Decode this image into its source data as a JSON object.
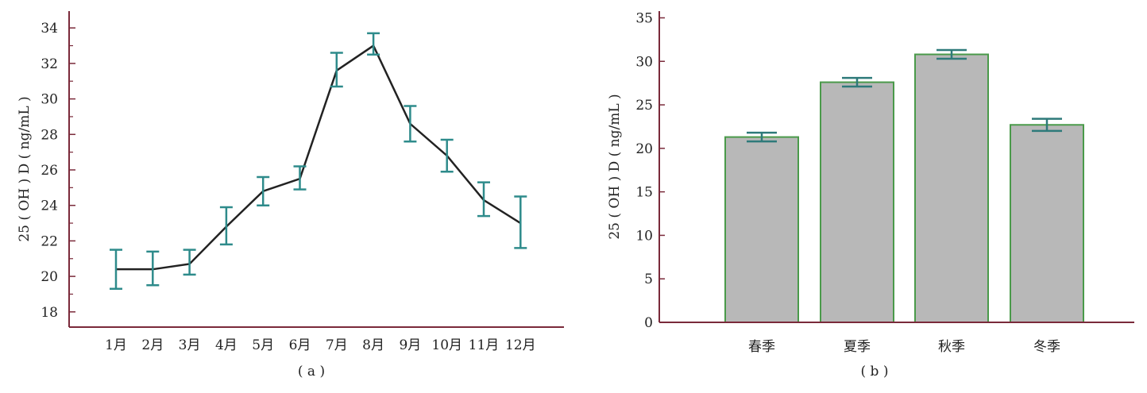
{
  "chart_data": [
    {
      "panel": "a",
      "panel_label": "( a )",
      "type": "line",
      "ylabel": "25 ( OH ) D ( ng/mL )",
      "xlabel": "",
      "categories": [
        "1月",
        "2月",
        "3月",
        "4月",
        "5月",
        "6月",
        "7月",
        "8月",
        "9月",
        "10月",
        "11月",
        "12月"
      ],
      "series": [
        {
          "values": [
            20.4,
            20.4,
            20.7,
            22.8,
            24.8,
            25.5,
            31.6,
            33.0,
            28.6,
            26.8,
            24.3,
            23.0
          ],
          "error_low": [
            19.3,
            19.5,
            20.1,
            21.8,
            24.0,
            24.9,
            30.7,
            32.5,
            27.6,
            25.9,
            23.4,
            21.6
          ],
          "error_high": [
            21.5,
            21.4,
            21.5,
            23.9,
            25.6,
            26.2,
            32.6,
            33.7,
            29.6,
            27.7,
            25.3,
            24.5
          ]
        }
      ],
      "ylim": [
        17.5,
        34.5
      ],
      "yticks": [
        18,
        20,
        22,
        24,
        26,
        28,
        30,
        32,
        34
      ],
      "grid": false,
      "colors": {
        "line": "#222222",
        "error_bar": "#2e8b8b",
        "axis": "#7a2a3a"
      }
    },
    {
      "panel": "b",
      "panel_label": "( b )",
      "type": "bar",
      "ylabel": "25 ( OH ) D ( ng/mL )",
      "xlabel": "",
      "categories": [
        "春季",
        "夏季",
        "秋季",
        "冬季"
      ],
      "values": [
        21.3,
        27.6,
        30.8,
        22.7
      ],
      "error_low": [
        20.8,
        27.1,
        30.3,
        22.0
      ],
      "error_high": [
        21.8,
        28.1,
        31.3,
        23.4
      ],
      "ylim": [
        0,
        35.5
      ],
      "yticks": [
        0,
        5,
        10,
        15,
        20,
        25,
        30,
        35
      ],
      "grid": false,
      "colors": {
        "bar_fill": "#b8b8b8",
        "bar_edge": "#4a9a4a",
        "error_bar": "#2e7a7a",
        "axis": "#7a2a3a"
      }
    }
  ]
}
